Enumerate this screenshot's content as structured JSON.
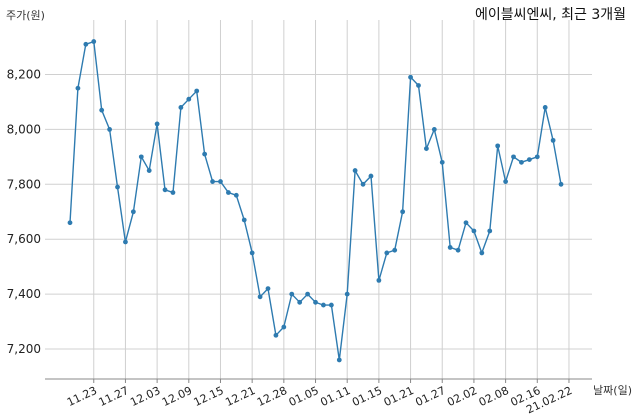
{
  "chart_data": {
    "type": "line",
    "title": "에이블씨엔씨, 최근 3개월",
    "ylabel": "주가(원)",
    "xlabel": "날짜(일)",
    "ylim": [
      7100,
      8350
    ],
    "yticks": [
      7200,
      7400,
      7600,
      7800,
      8000,
      8200
    ],
    "ytick_labels": [
      "7,200",
      "7,400",
      "7,600",
      "7,800",
      "8,000",
      "8,200"
    ],
    "xtick_labels": [
      "11.23",
      "11.27",
      "12.03",
      "12.09",
      "12.15",
      "12.21",
      "12.28",
      "01.05",
      "01.11",
      "01.15",
      "01.21",
      "01.27",
      "02.02",
      "02.08",
      "02.16",
      "21.02.22"
    ],
    "xtick_index": [
      3,
      7,
      11,
      15,
      19,
      23,
      27,
      31,
      35,
      39,
      43,
      47,
      51,
      55,
      59,
      63
    ],
    "grid": true,
    "series": [
      {
        "color": "#2e7bb0",
        "values": [
          7660,
          8150,
          8310,
          8320,
          8070,
          8000,
          7790,
          7590,
          7700,
          7900,
          7850,
          8020,
          7780,
          7770,
          8080,
          8110,
          8140,
          7910,
          7810,
          7810,
          7770,
          7760,
          7670,
          7550,
          7390,
          7420,
          7250,
          7280,
          7400,
          7370,
          7400,
          7370,
          7360,
          7360,
          7160,
          7400,
          7850,
          7800,
          7830,
          7450,
          7550,
          7560,
          7700,
          8190,
          8160,
          7930,
          8000,
          7880,
          7570,
          7560,
          7660,
          7630,
          7550,
          7630,
          7940,
          7810,
          7900,
          7880,
          7890,
          7900,
          8080,
          7960,
          7800
        ]
      }
    ]
  }
}
